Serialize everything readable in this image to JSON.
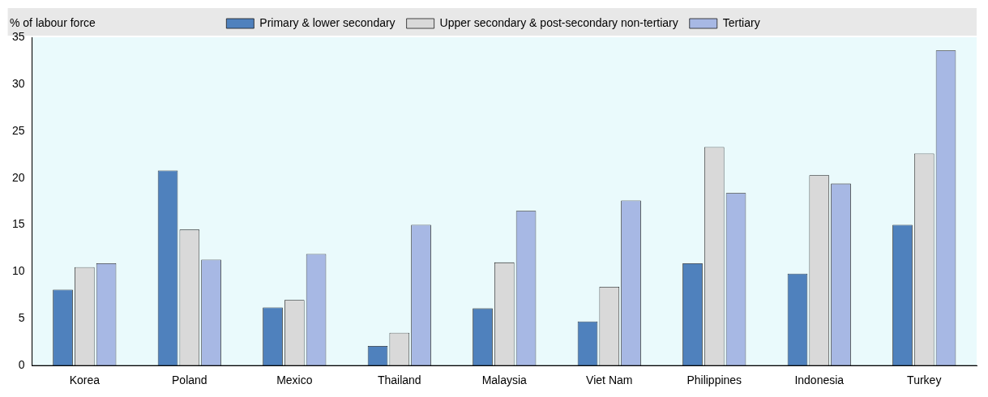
{
  "chart_data": {
    "type": "bar",
    "ylabel": "% of labour force",
    "categories": [
      "Korea",
      "Poland",
      "Mexico",
      "Thailand",
      "Malaysia",
      "Viet Nam",
      "Philippines",
      "Indonesia",
      "Turkey"
    ],
    "series": [
      {
        "name": "Primary & lower secondary",
        "color": "#4f81bd",
        "values": [
          8.1,
          20.8,
          6.2,
          2.1,
          6.1,
          4.7,
          10.9,
          9.8,
          15.0
        ]
      },
      {
        "name": "Upper secondary & post-secondary non-tertiary",
        "color": "#d9d9d9",
        "values": [
          10.5,
          14.5,
          7.0,
          3.5,
          11.0,
          8.4,
          23.3,
          20.3,
          22.6
        ]
      },
      {
        "name": "Tertiary",
        "color": "#a7b8e4",
        "values": [
          10.9,
          11.3,
          11.9,
          15.0,
          16.5,
          17.6,
          18.4,
          19.4,
          33.6
        ]
      }
    ],
    "ylim": [
      0,
      35
    ],
    "yticks": [
      0,
      5,
      10,
      15,
      20,
      25,
      30,
      35
    ],
    "grid": false,
    "legend": "top"
  }
}
